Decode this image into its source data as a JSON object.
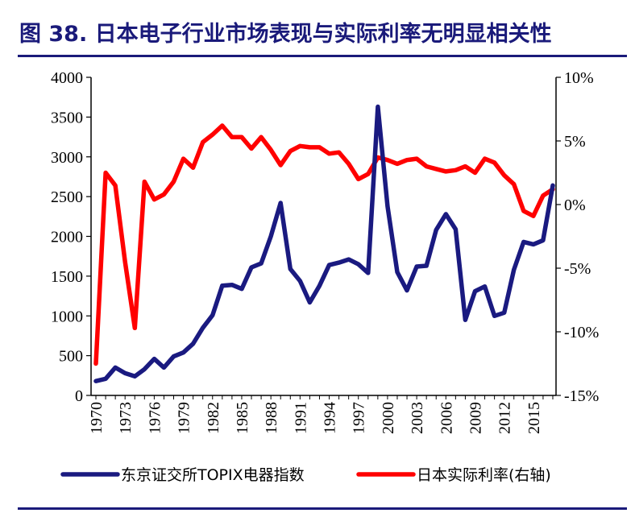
{
  "figure": {
    "title": "图 38. 日本电子行业市场表现与实际利率无明显相关性"
  },
  "chart_data": {
    "type": "line",
    "title": "图 38. 日本电子行业市场表现与实际利率无明显相关性",
    "x": [
      1970,
      1971,
      1972,
      1973,
      1974,
      1975,
      1976,
      1977,
      1978,
      1979,
      1980,
      1981,
      1982,
      1983,
      1984,
      1985,
      1986,
      1987,
      1988,
      1989,
      1990,
      1991,
      1992,
      1993,
      1994,
      1995,
      1996,
      1997,
      1998,
      1999,
      2000,
      2001,
      2002,
      2003,
      2004,
      2005,
      2006,
      2007,
      2008,
      2009,
      2010,
      2011,
      2012,
      2013,
      2014,
      2015,
      2016,
      2017
    ],
    "x_tick_labels": [
      "1970",
      "1973",
      "1976",
      "1979",
      "1982",
      "1985",
      "1988",
      "1991",
      "1994",
      "1997",
      "2000",
      "2003",
      "2006",
      "2009",
      "2012",
      "2015"
    ],
    "x_range": [
      1970,
      2017
    ],
    "y_left": {
      "ylim": [
        0,
        4000
      ],
      "ticks": [
        "0",
        "500",
        "1000",
        "1500",
        "2000",
        "2500",
        "3000",
        "3500",
        "4000"
      ]
    },
    "y_right": {
      "ylim": [
        -15,
        10
      ],
      "ticks": [
        "-15%",
        "-10%",
        "-5%",
        "0%",
        "5%",
        "10%"
      ]
    },
    "grid": false,
    "legend_position": "bottom",
    "series": [
      {
        "name": "东京证交所TOPIX电器指数",
        "axis": "left",
        "color": "#1a1a80",
        "values": [
          180,
          210,
          350,
          280,
          240,
          330,
          460,
          350,
          490,
          540,
          650,
          850,
          1010,
          1380,
          1390,
          1340,
          1610,
          1660,
          2000,
          2420,
          1590,
          1440,
          1170,
          1380,
          1640,
          1670,
          1710,
          1650,
          1540,
          3630,
          2380,
          1550,
          1320,
          1620,
          1630,
          2080,
          2280,
          2090,
          950,
          1310,
          1370,
          1000,
          1040,
          1580,
          1930,
          1900,
          1950,
          2640
        ]
      },
      {
        "name": "日本实际利率(右轴)",
        "axis": "right",
        "color": "#ff0000",
        "values": [
          -12.5,
          2.5,
          1.5,
          -4.5,
          -9.7,
          1.8,
          0.4,
          0.8,
          1.8,
          3.6,
          2.9,
          4.9,
          5.5,
          6.2,
          5.3,
          5.3,
          4.4,
          5.3,
          4.3,
          3.1,
          4.2,
          4.6,
          4.5,
          4.5,
          4.0,
          4.1,
          3.2,
          2.0,
          2.4,
          3.7,
          3.5,
          3.2,
          3.5,
          3.6,
          3.0,
          2.8,
          2.6,
          2.7,
          3.0,
          2.5,
          3.6,
          3.3,
          2.3,
          1.6,
          -0.5,
          -0.9,
          0.7,
          1.2
        ]
      }
    ]
  }
}
